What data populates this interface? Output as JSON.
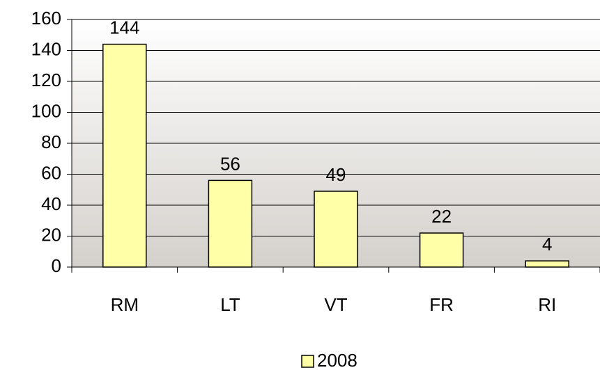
{
  "chart_data": {
    "type": "bar",
    "categories": [
      "RM",
      "LT",
      "VT",
      "FR",
      "RI"
    ],
    "series": [
      {
        "name": "2008",
        "color": "#ffffa8",
        "values": [
          144,
          56,
          49,
          22,
          4
        ]
      }
    ],
    "ylim": [
      0,
      160
    ],
    "yticks": [
      0,
      20,
      40,
      60,
      80,
      100,
      120,
      140,
      160
    ],
    "grid": true,
    "legend": "bottom"
  }
}
